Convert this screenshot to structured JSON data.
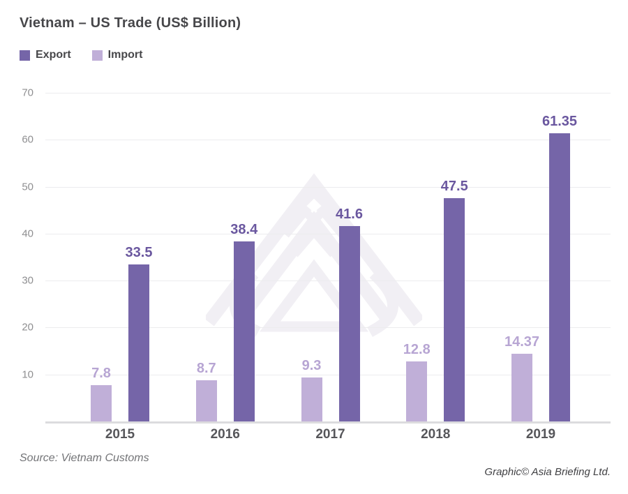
{
  "header": {
    "title": "Vietnam – US Trade (US$ Billion)"
  },
  "legend": [
    {
      "label": "Export",
      "color": "#7565a8"
    },
    {
      "label": "Import",
      "color": "#c0afd8"
    }
  ],
  "chart_data": {
    "type": "bar",
    "title": "Vietnam – US Trade (US$ Billion)",
    "categories": [
      "2015",
      "2016",
      "2017",
      "2018",
      "2019"
    ],
    "series": [
      {
        "name": "Export",
        "color": "#7565a8",
        "label_color": "#6a579f",
        "values": [
          33.5,
          38.4,
          41.6,
          47.5,
          61.35
        ]
      },
      {
        "name": "Import",
        "color": "#c0afd8",
        "label_color": "#b7a5d3",
        "values": [
          7.8,
          8.7,
          9.3,
          12.8,
          14.37
        ]
      }
    ],
    "xlabel": "",
    "ylabel": "",
    "ylim": [
      0,
      70
    ],
    "yticks": [
      10,
      20,
      30,
      40,
      50,
      60,
      70
    ],
    "grid": "horizontal",
    "legend_position": "top-left",
    "bar_value_labels": true,
    "bar_order_left_to_right": [
      "Import",
      "Export"
    ]
  },
  "footer": {
    "source": "Source: Vietnam Customs",
    "credit": "Graphic© Asia Briefing Ltd."
  },
  "colors": {
    "grid": "#ececee",
    "axis": "#dcdcde",
    "title_text": "#47474a",
    "ytick_text": "#8f8f91",
    "year_text": "#56565a",
    "watermark": "#f1eff4"
  }
}
